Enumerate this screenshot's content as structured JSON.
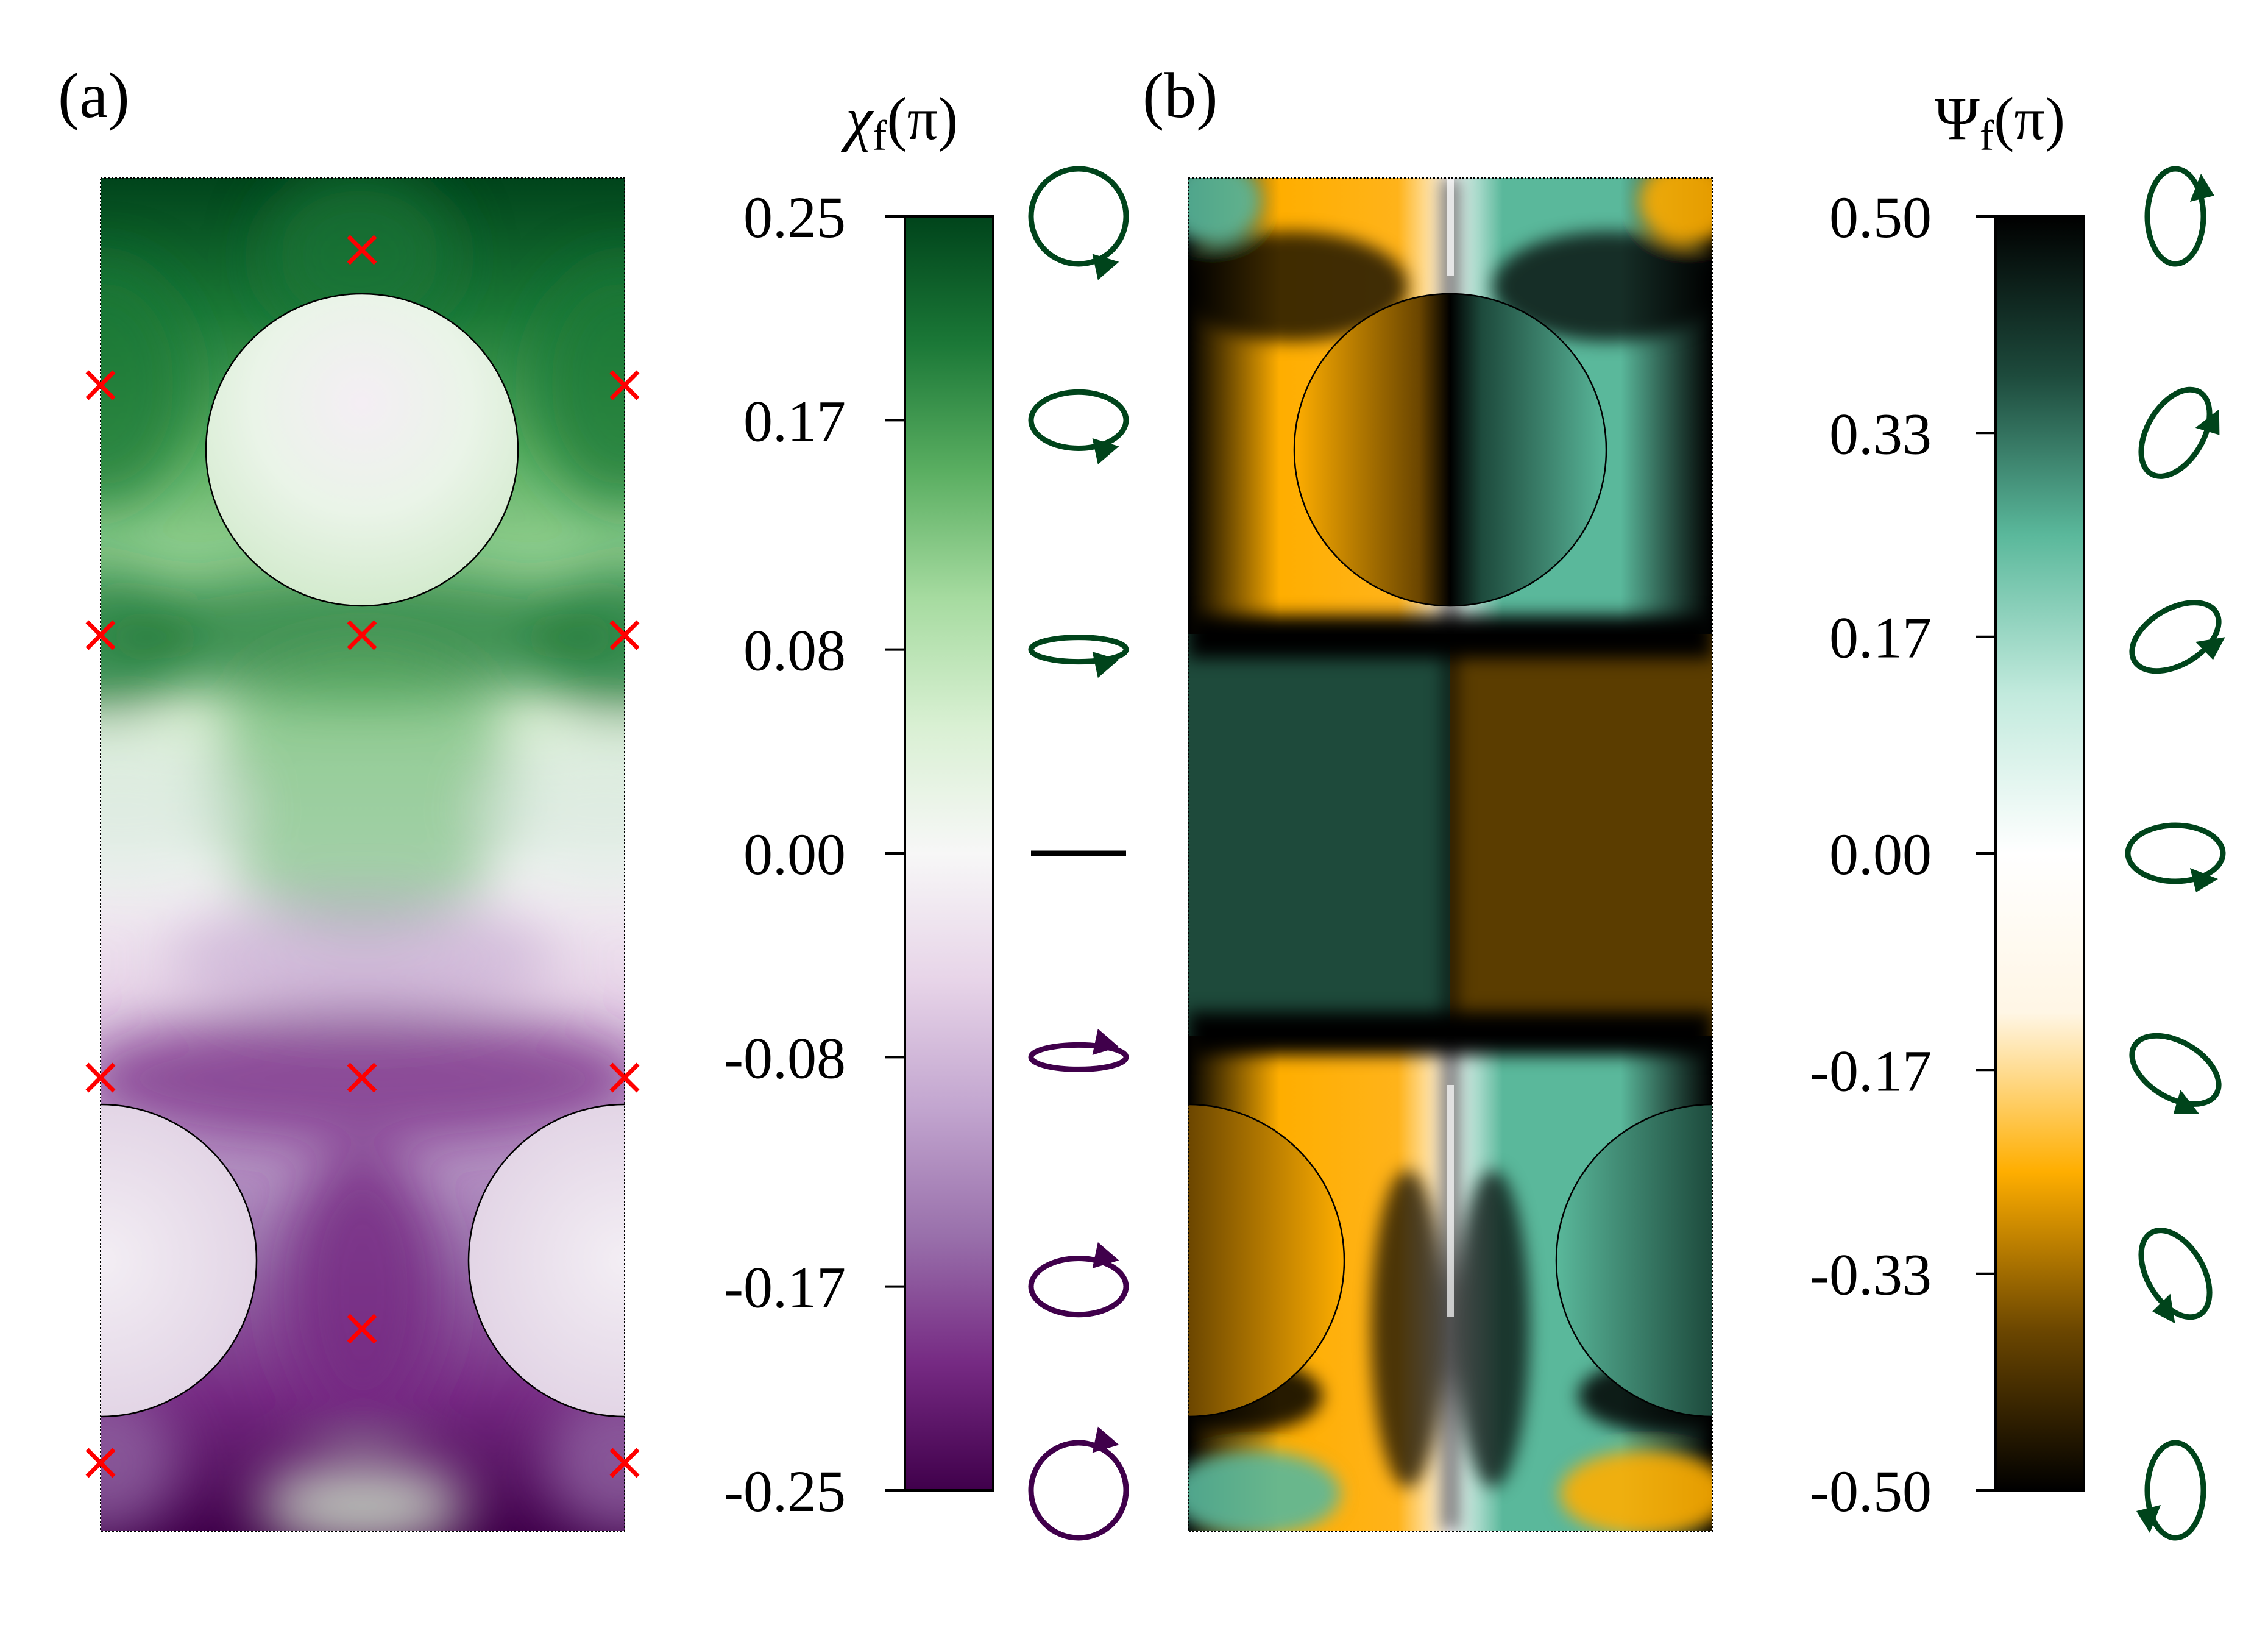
{
  "chart_data": [
    {
      "type": "heatmap",
      "panel_label": "(a)",
      "colorbar_title": "χf(π)",
      "colorbar_title_parts": {
        "symbol": "χ",
        "subscript": "f",
        "argument": "(π)"
      },
      "colorbar_ticks": [
        "0.25",
        "0.17",
        "0.08",
        "0.00",
        "-0.08",
        "-0.17",
        "-0.25"
      ],
      "colorbar_range": [
        -0.25,
        0.25
      ],
      "colormap": {
        "name": "purple-green diverging",
        "stops": [
          "#40004b",
          "#762a83",
          "#9970ab",
          "#c2a5cf",
          "#e7d4e8",
          "#f7f7f7",
          "#d9f0d3",
          "#a6dba0",
          "#5aae61",
          "#1b7837",
          "#00441b"
        ]
      },
      "polarization_ellipses": [
        {
          "chi": 0.25,
          "color": "#00441b"
        },
        {
          "chi": 0.17,
          "color": "#00441b"
        },
        {
          "chi": 0.08,
          "color": "#00441b"
        },
        {
          "chi": 0.0,
          "color": "#000000"
        },
        {
          "chi": -0.08,
          "color": "#40004b"
        },
        {
          "chi": -0.17,
          "color": "#40004b"
        },
        {
          "chi": -0.25,
          "color": "#40004b"
        }
      ],
      "singular_points": {
        "marker": "×",
        "color": "#ff0000",
        "count": 12
      }
    },
    {
      "type": "heatmap",
      "panel_label": "(b)",
      "colorbar_title": "Ψf(π)",
      "colorbar_title_parts": {
        "symbol": "Ψ",
        "subscript": "f",
        "argument": "(π)"
      },
      "colorbar_ticks": [
        "0.50",
        "0.33",
        "0.17",
        "0.00",
        "-0.17",
        "-0.33",
        "-0.50"
      ],
      "colorbar_range": [
        -0.5,
        0.5
      ],
      "colormap": {
        "name": "black-orange-white-teal-black",
        "stops": [
          "#000000",
          "#6b4600",
          "#ffae00",
          "#fff6e5",
          "#ffffff",
          "#c2eadd",
          "#5ab89b",
          "#1d4a3c",
          "#000000"
        ]
      },
      "polarization_ellipses": [
        {
          "psi": 0.5,
          "color": "#00441b"
        },
        {
          "psi": 0.33,
          "color": "#00441b"
        },
        {
          "psi": 0.17,
          "color": "#00441b"
        },
        {
          "psi": 0.0,
          "color": "#00441b"
        },
        {
          "psi": -0.17,
          "color": "#00441b"
        },
        {
          "psi": -0.33,
          "color": "#00441b"
        },
        {
          "psi": -0.5,
          "color": "#00441b"
        }
      ]
    }
  ]
}
